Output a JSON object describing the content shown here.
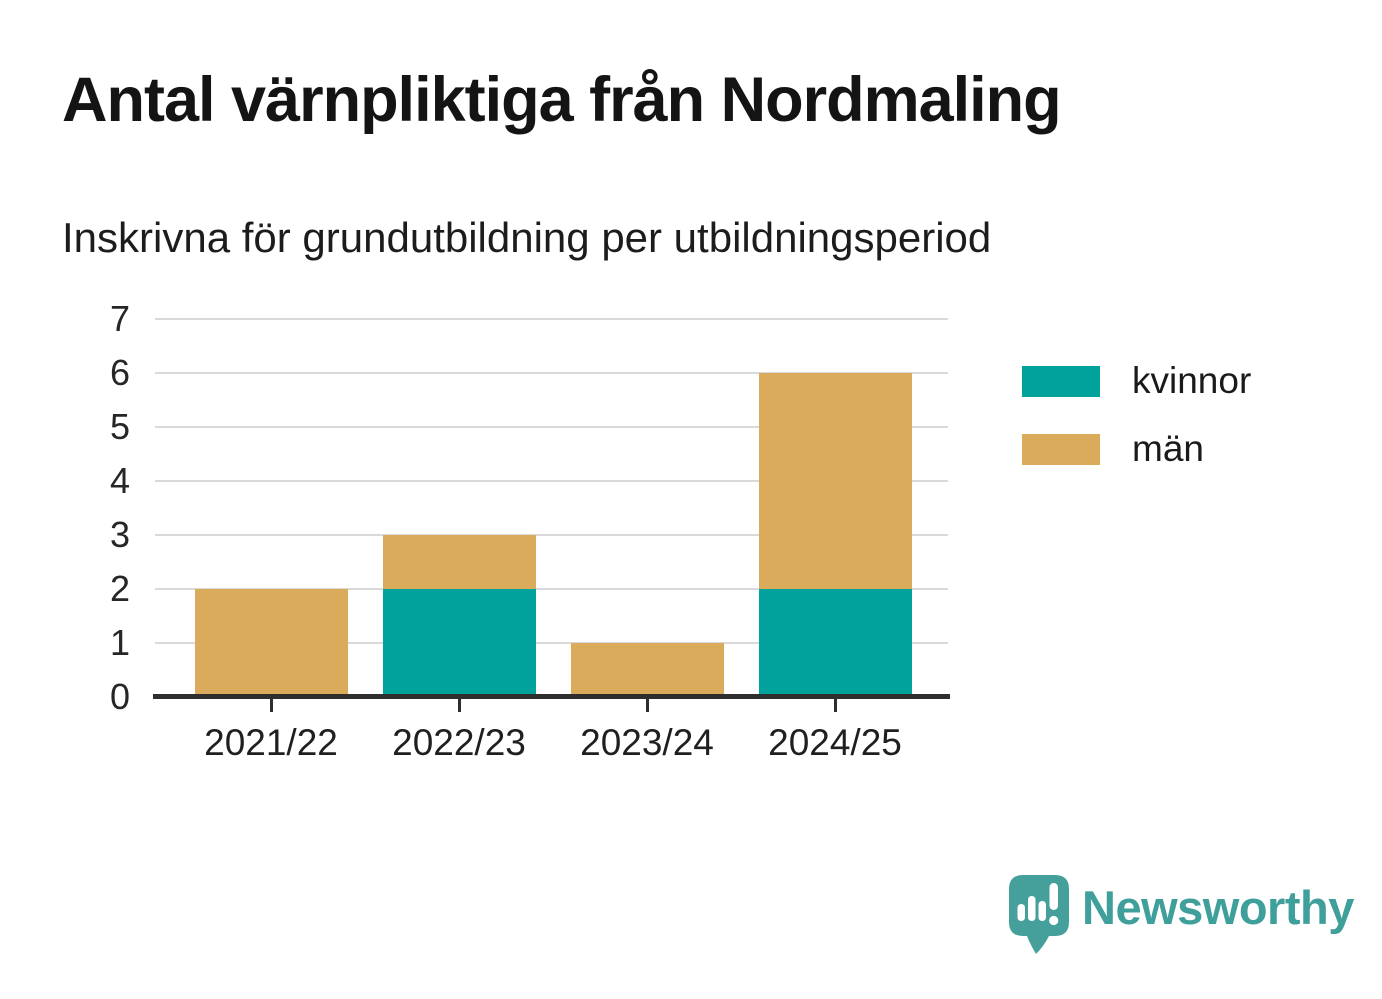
{
  "header": {
    "title": "Antal värnpliktiga från Nordmaling",
    "subtitle": "Inskrivna för grundutbildning per utbildningsperiod"
  },
  "chart_data": {
    "type": "bar",
    "stacked": true,
    "title": "Antal värnpliktiga från Nordmaling",
    "subtitle": "Inskrivna för grundutbildning per utbildningsperiod",
    "categories": [
      "2021/22",
      "2022/23",
      "2023/24",
      "2024/25"
    ],
    "series": [
      {
        "name": "kvinnor",
        "color": "#00a29b",
        "values": [
          0,
          2,
          0,
          2
        ]
      },
      {
        "name": "män",
        "color": "#d9ab5a",
        "values": [
          2,
          1,
          1,
          4
        ]
      }
    ],
    "totals": [
      2,
      3,
      1,
      6
    ],
    "xlabel": "",
    "ylabel": "",
    "ylim": [
      0,
      7
    ],
    "yticks": [
      0,
      1,
      2,
      3,
      4,
      5,
      6,
      7
    ],
    "grid": true,
    "legend_position": "right"
  },
  "legend": {
    "items": [
      {
        "label": "kvinnor",
        "color": "#00a29b"
      },
      {
        "label": "män",
        "color": "#d9ab5a"
      }
    ]
  },
  "footer": {
    "brand": "Newsworthy",
    "brand_color": "#3f9f9a",
    "logo_icon": "speech-bubble-bar-chart-icon"
  },
  "colors": {
    "background": "#ffffff",
    "gridline": "#d9d9d9",
    "axis": "#2e2e2e",
    "text": "#1a1a1a"
  }
}
